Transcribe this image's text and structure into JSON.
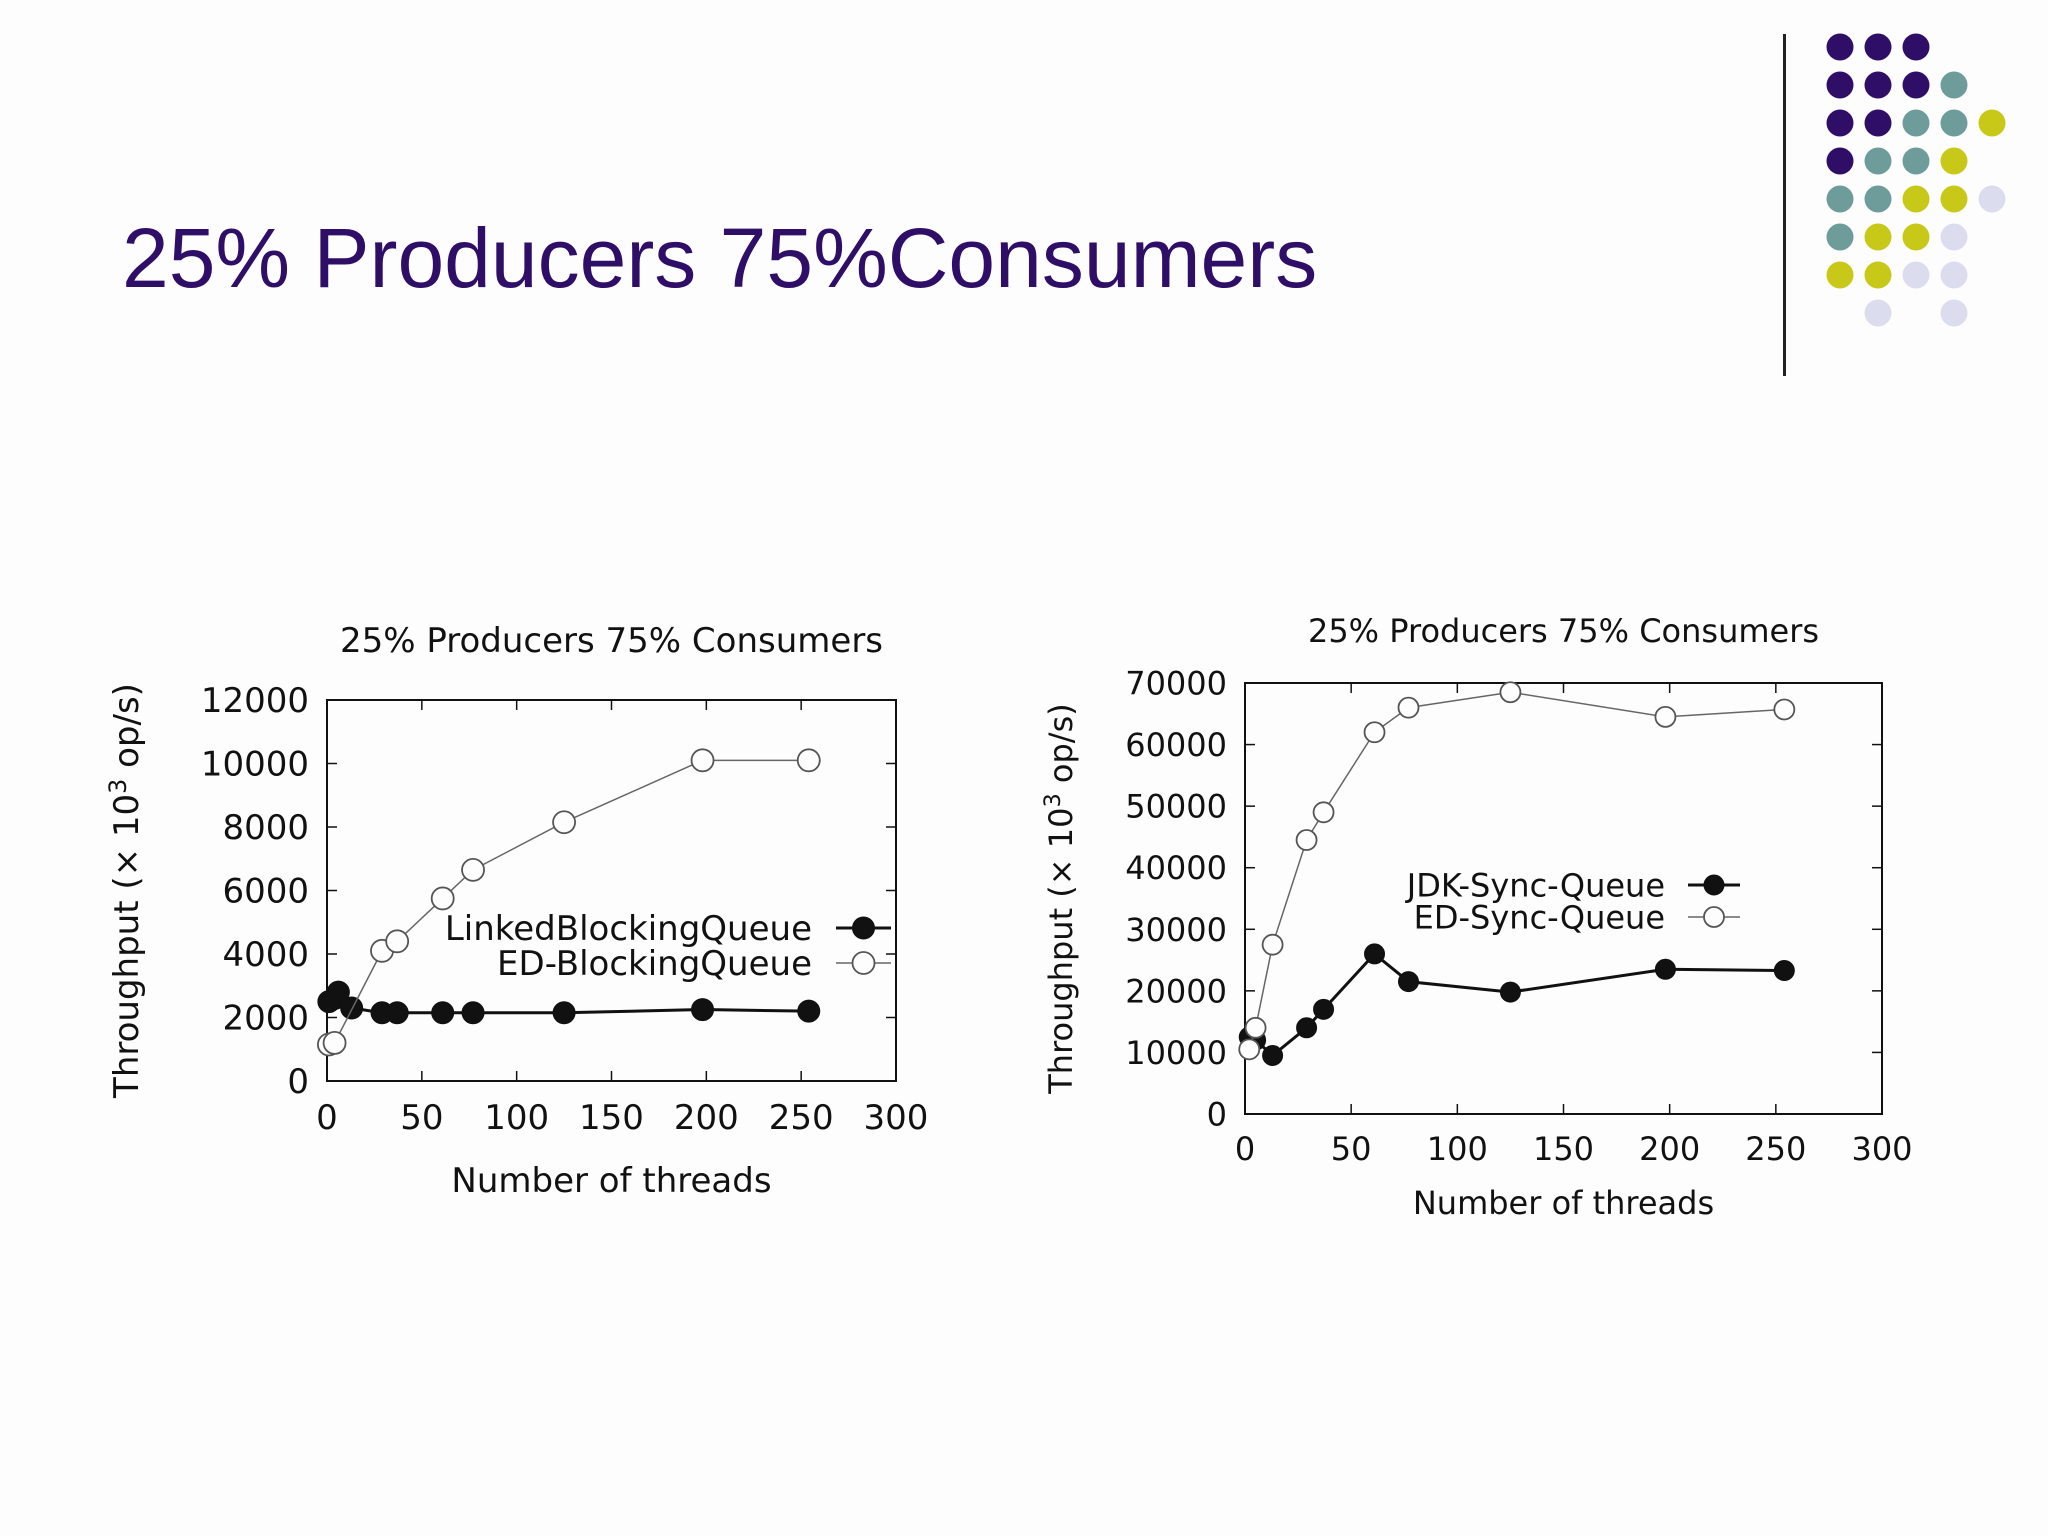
{
  "slide": {
    "title": "25% Producers 75%Consumers"
  },
  "decoration": {
    "dot_colors": {
      "purple": "#2e0e66",
      "teal": "#6e9c9a",
      "olive": "#c8c818",
      "lavender": "#dcdcef"
    },
    "dot_pattern": [
      [
        "purple",
        "purple",
        "purple",
        null,
        null
      ],
      [
        "purple",
        "purple",
        "purple",
        "teal",
        null
      ],
      [
        "purple",
        "purple",
        "teal",
        "teal",
        "olive"
      ],
      [
        "purple",
        "teal",
        "teal",
        "olive",
        null
      ],
      [
        "teal",
        "teal",
        "olive",
        "olive",
        "lavender"
      ],
      [
        "teal",
        "olive",
        "olive",
        "lavender",
        null
      ],
      [
        "olive",
        "olive",
        "lavender",
        "lavender",
        null
      ],
      [
        null,
        "lavender",
        null,
        "lavender",
        null
      ]
    ]
  },
  "chart_data": [
    {
      "type": "line",
      "title": "25% Producers 75% Consumers",
      "xlabel": "Number of threads",
      "ylabel_prefix": "Throughput (× 10",
      "ylabel_sup": "3",
      "ylabel_suffix": " op/s)",
      "xlim": [
        0,
        300
      ],
      "ylim": [
        0,
        12000
      ],
      "xticks": [
        0,
        50,
        100,
        150,
        200,
        250,
        300
      ],
      "yticks": [
        0,
        2000,
        4000,
        6000,
        8000,
        10000,
        12000
      ],
      "legend_position": "center-right",
      "series": [
        {
          "name": "LinkedBlockingQueue",
          "marker": "filled-circle",
          "x": [
            1,
            4,
            6,
            13,
            29,
            37,
            61,
            77,
            125,
            198,
            254
          ],
          "y": [
            2500,
            2600,
            2800,
            2300,
            2150,
            2150,
            2150,
            2150,
            2150,
            2250,
            2200
          ]
        },
        {
          "name": "ED-BlockingQueue",
          "marker": "open-circle",
          "x": [
            1,
            4,
            29,
            37,
            61,
            77,
            125,
            198,
            254
          ],
          "y": [
            1150,
            1200,
            4100,
            4400,
            5750,
            6650,
            8150,
            10100,
            10100
          ]
        }
      ]
    },
    {
      "type": "line",
      "title": "25% Producers 75% Consumers",
      "xlabel": "Number of threads",
      "ylabel_prefix": "Throughput (× 10",
      "ylabel_sup": "3",
      "ylabel_suffix": " op/s)",
      "xlim": [
        0,
        300
      ],
      "ylim": [
        0,
        70000
      ],
      "xticks": [
        0,
        50,
        100,
        150,
        200,
        250,
        300
      ],
      "yticks": [
        0,
        10000,
        20000,
        30000,
        40000,
        50000,
        60000,
        70000
      ],
      "legend_position": "center-right",
      "series": [
        {
          "name": "JDK-Sync-Queue",
          "marker": "filled-circle",
          "x": [
            2,
            5,
            13,
            29,
            37,
            61,
            77,
            125,
            198,
            254
          ],
          "y": [
            12500,
            12000,
            9500,
            14000,
            17000,
            26000,
            21500,
            19800,
            23500,
            23300
          ]
        },
        {
          "name": "ED-Sync-Queue",
          "marker": "open-circle",
          "x": [
            2,
            5,
            13,
            29,
            37,
            61,
            77,
            125,
            198,
            254
          ],
          "y": [
            10500,
            14000,
            27500,
            44500,
            49000,
            62000,
            66000,
            68500,
            64500,
            65700
          ]
        }
      ]
    }
  ]
}
